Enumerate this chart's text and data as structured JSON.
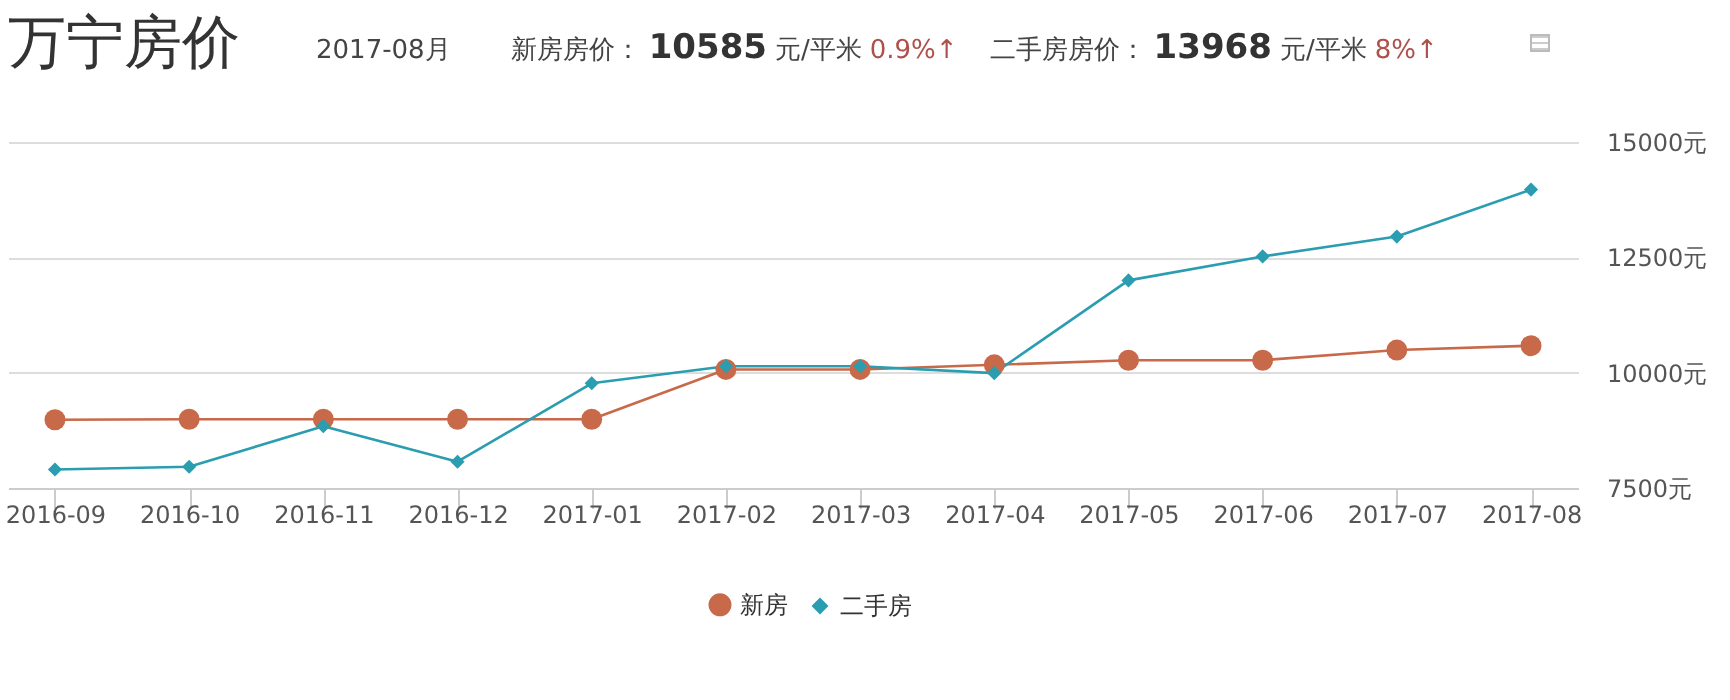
{
  "chart_data": {
    "type": "line",
    "title": "万宁房价",
    "annotations": [
      "2017-08月",
      "新房房价：",
      "10585",
      "元/平米",
      "0.9%↑",
      "二手房房价：",
      "13968",
      "元/平米",
      "8%↑"
    ],
    "categories": [
      "2016-09",
      "2016-10",
      "2016-11",
      "2016-12",
      "2017-01",
      "2017-02",
      "2017-03",
      "2017-04",
      "2017-05",
      "2017-06",
      "2017-07",
      "2017-08"
    ],
    "series": [
      {
        "name": "新房",
        "color": "#c8694a",
        "marker": "circle",
        "values": [
          8980,
          8990,
          8990,
          8990,
          8990,
          10070,
          10070,
          10170,
          10270,
          10270,
          10490,
          10585
        ]
      },
      {
        "name": "二手房",
        "color": "#2a9db0",
        "marker": "diamond",
        "values": [
          7900,
          7960,
          8840,
          8070,
          9770,
          10140,
          10140,
          9990,
          12000,
          12520,
          12950,
          13968
        ]
      }
    ],
    "ylim": [
      7500,
      15000
    ],
    "yticks": [
      {
        "value": 7500,
        "label": "7500元"
      },
      {
        "value": 10000,
        "label": "10000元"
      },
      {
        "value": 12500,
        "label": "12500元"
      },
      {
        "value": 15000,
        "label": "15000元"
      }
    ],
    "grid": "y",
    "legend": "bottom",
    "line_style": "solid"
  }
}
